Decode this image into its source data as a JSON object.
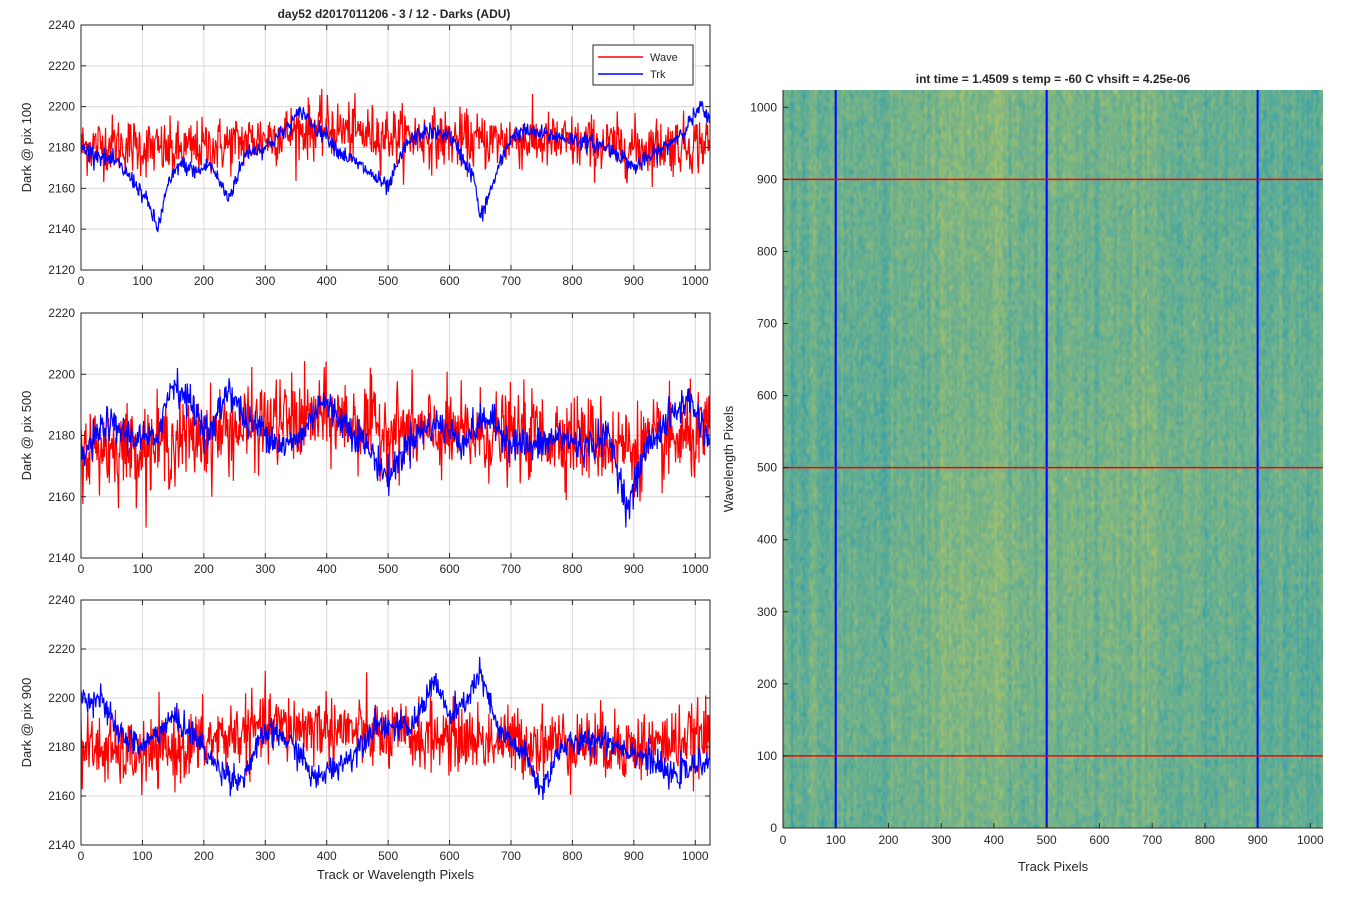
{
  "figure": {
    "title": "day52 d2017011206 - 3 / 12 - Darks (ADU)",
    "colors": {
      "wave": "#ff0000",
      "trk": "#0000ff",
      "grid": "#d9d9d9",
      "axis": "#262626"
    }
  },
  "chart_data": [
    {
      "type": "line",
      "ylabel": "Dark @ pix 100",
      "xlabel": "",
      "xlim": [
        0,
        1024
      ],
      "ylim": [
        2120,
        2240
      ],
      "xticks": [
        "0",
        "100",
        "200",
        "300",
        "400",
        "500",
        "600",
        "700",
        "800",
        "900",
        "1000"
      ],
      "yticks": [
        "2120",
        "2140",
        "2160",
        "2180",
        "2200",
        "2220",
        "2240"
      ],
      "grid": true,
      "legend": {
        "placement": "top-right",
        "entries": [
          "Wave",
          "Trk"
        ]
      },
      "series": [
        {
          "name": "Wave",
          "color": "#ff0000",
          "x": [
            0,
            50,
            100,
            150,
            200,
            250,
            300,
            350,
            400,
            450,
            500,
            550,
            600,
            650,
            700,
            750,
            800,
            850,
            900,
            950,
            1023
          ],
          "values": [
            2180,
            2182,
            2180,
            2178,
            2180,
            2182,
            2185,
            2188,
            2190,
            2187,
            2186,
            2185,
            2184,
            2183,
            2184,
            2183,
            2182,
            2181,
            2180,
            2181,
            2182
          ],
          "noise": 10
        },
        {
          "name": "Trk",
          "color": "#0000ff",
          "x": [
            0,
            30,
            60,
            90,
            110,
            125,
            140,
            160,
            190,
            210,
            240,
            270,
            300,
            330,
            360,
            380,
            400,
            420,
            460,
            500,
            530,
            560,
            600,
            640,
            650,
            680,
            700,
            720,
            760,
            800,
            850,
            880,
            900,
            950,
            980,
            1010,
            1023
          ],
          "values": [
            2180,
            2176,
            2172,
            2162,
            2152,
            2140,
            2160,
            2172,
            2168,
            2172,
            2155,
            2178,
            2180,
            2188,
            2198,
            2190,
            2186,
            2178,
            2170,
            2160,
            2182,
            2188,
            2186,
            2165,
            2145,
            2170,
            2185,
            2188,
            2186,
            2184,
            2181,
            2176,
            2170,
            2180,
            2188,
            2200,
            2192
          ],
          "noise": 3
        }
      ]
    },
    {
      "type": "line",
      "ylabel": "Dark @ pix 500",
      "xlabel": "",
      "xlim": [
        0,
        1024
      ],
      "ylim": [
        2140,
        2220
      ],
      "xticks": [
        "0",
        "100",
        "200",
        "300",
        "400",
        "500",
        "600",
        "700",
        "800",
        "900",
        "1000"
      ],
      "yticks": [
        "2140",
        "2160",
        "2180",
        "2200",
        "2220"
      ],
      "grid": true,
      "series": [
        {
          "name": "Wave",
          "color": "#ff0000",
          "x": [
            0,
            100,
            200,
            300,
            400,
            500,
            600,
            700,
            800,
            900,
            1023
          ],
          "values": [
            2176,
            2176,
            2180,
            2184,
            2186,
            2182,
            2180,
            2180,
            2180,
            2176,
            2180
          ],
          "noise": 10
        },
        {
          "name": "Trk",
          "color": "#0000ff",
          "x": [
            0,
            40,
            80,
            120,
            150,
            180,
            210,
            240,
            270,
            300,
            330,
            360,
            390,
            420,
            460,
            500,
            540,
            580,
            620,
            660,
            700,
            740,
            780,
            820,
            860,
            890,
            920,
            960,
            990,
            1010,
            1023
          ],
          "values": [
            2172,
            2184,
            2180,
            2178,
            2198,
            2190,
            2180,
            2196,
            2184,
            2182,
            2176,
            2180,
            2192,
            2186,
            2178,
            2166,
            2180,
            2184,
            2178,
            2186,
            2178,
            2176,
            2180,
            2176,
            2180,
            2156,
            2176,
            2186,
            2192,
            2184,
            2178
          ],
          "noise": 4
        }
      ]
    },
    {
      "type": "line",
      "ylabel": "Dark @ pix 900",
      "xlabel": "Track or Wavelength Pixels",
      "xlim": [
        0,
        1024
      ],
      "ylim": [
        2140,
        2240
      ],
      "xticks": [
        "0",
        "100",
        "200",
        "300",
        "400",
        "500",
        "600",
        "700",
        "800",
        "900",
        "1000"
      ],
      "yticks": [
        "2140",
        "2160",
        "2180",
        "2200",
        "2220",
        "2240"
      ],
      "grid": true,
      "series": [
        {
          "name": "Wave",
          "color": "#ff0000",
          "x": [
            0,
            100,
            200,
            300,
            400,
            500,
            600,
            700,
            800,
            900,
            1023
          ],
          "values": [
            2180,
            2176,
            2182,
            2188,
            2188,
            2184,
            2184,
            2182,
            2182,
            2180,
            2184
          ],
          "noise": 10
        },
        {
          "name": "Trk",
          "color": "#0000ff",
          "x": [
            0,
            30,
            60,
            100,
            150,
            180,
            220,
            260,
            300,
            330,
            360,
            380,
            400,
            440,
            480,
            510,
            540,
            575,
            600,
            620,
            650,
            680,
            720,
            750,
            780,
            820,
            850,
            880,
            920,
            960,
            1000,
            1023
          ],
          "values": [
            2200,
            2200,
            2186,
            2180,
            2192,
            2186,
            2172,
            2166,
            2186,
            2184,
            2176,
            2166,
            2170,
            2176,
            2190,
            2188,
            2188,
            2208,
            2192,
            2196,
            2210,
            2186,
            2178,
            2162,
            2180,
            2182,
            2184,
            2180,
            2176,
            2168,
            2172,
            2176
          ],
          "noise": 4
        }
      ]
    },
    {
      "type": "heatmap",
      "title": "int time = 1.4509 s    temp = -60 C    vhsift = 4.25e-06",
      "xlabel": "Track Pixels",
      "ylabel": "Wavelength Pixels",
      "xlim": [
        0,
        1024
      ],
      "ylim": [
        0,
        1024
      ],
      "xticks": [
        "0",
        "100",
        "200",
        "300",
        "400",
        "500",
        "600",
        "700",
        "800",
        "900",
        "1000"
      ],
      "yticks": [
        "0",
        "100",
        "200",
        "300",
        "400",
        "500",
        "600",
        "700",
        "800",
        "900",
        "1000"
      ],
      "colormap": "parula",
      "vertical_markers": {
        "color": "#0000ff",
        "x": [
          100,
          500,
          900
        ]
      },
      "horizontal_markers": {
        "color": "#ff0000",
        "y": [
          100,
          500,
          900
        ]
      }
    }
  ]
}
